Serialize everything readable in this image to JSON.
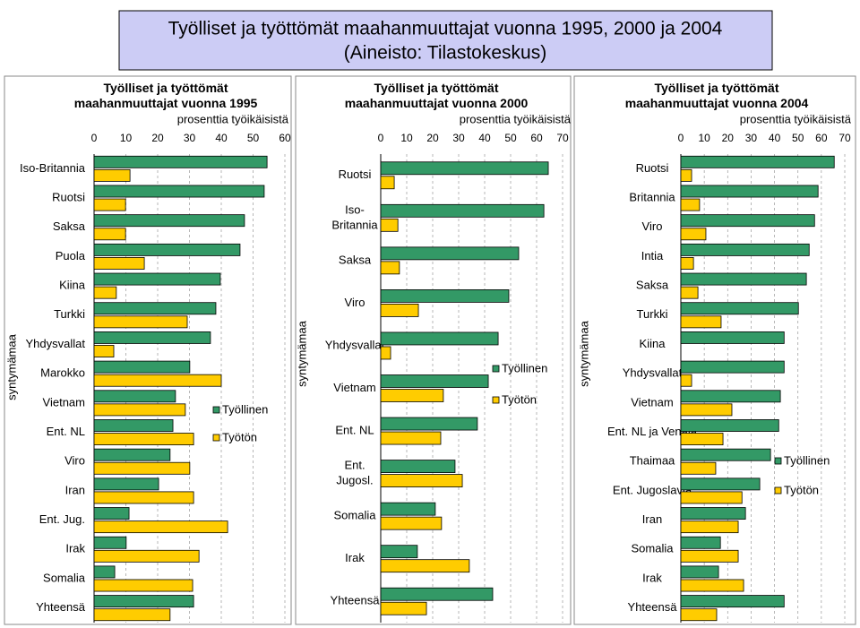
{
  "header": {
    "title": "Työlliset ja työttömät maahanmuuttajat vuonna 1995, 2000 ja 2004",
    "subtitle": "(Aineisto: Tilastokeskus)"
  },
  "chart_data": [
    {
      "type": "barh",
      "title": "Työlliset ja työttömät\nmaahanmuuttajat vuonna 1995",
      "x_label": "prosenttia työikäisistä",
      "y_label": "syntymämaa",
      "categories": [
        "Iso-Britannia",
        "Ruotsi",
        "Saksa",
        "Puola",
        "Kiina",
        "Turkki",
        "Yhdysvallat",
        "Marokko",
        "Vietnam",
        "Ent. NL",
        "Viro",
        "Iran",
        "Ent. Jug.",
        "Irak",
        "Somalia",
        "Yhteensä"
      ],
      "series": [
        {
          "name": "Työllinen",
          "color": "#339966",
          "values": [
            54.4,
            53.5,
            47.3,
            45.9,
            39.7,
            38.3,
            36.6,
            30.1,
            25.6,
            24.8,
            23.9,
            20.3,
            11.0,
            10.1,
            6.5,
            31.3
          ]
        },
        {
          "name": "Työtön",
          "color": "#ffcc00",
          "values": [
            11.3,
            9.9,
            9.9,
            15.8,
            7.0,
            29.3,
            6.2,
            40.0,
            28.7,
            31.3,
            30.1,
            31.3,
            42.0,
            33.0,
            31.0,
            23.9
          ]
        }
      ],
      "xlim": [
        0,
        60
      ],
      "xticks": [
        0,
        10,
        20,
        30,
        40,
        50,
        60
      ],
      "grid": true
    },
    {
      "type": "barh",
      "title": "Työlliset ja työttömät\nmaahanmuuttajat vuonna 2000",
      "x_label": "prosenttia työikäisistä",
      "y_label": "syntymämaa",
      "categories": [
        "Ruotsi",
        "Iso-\nBritannia",
        "Saksa",
        "Viro",
        "Yhdysvallat",
        "Vietnam",
        "Ent. NL",
        "Ent.\nJugosl.",
        "Somalia",
        "Irak",
        "Yhteensä"
      ],
      "series": [
        {
          "name": "Työllinen",
          "color": "#339966",
          "values": [
            64.5,
            62.8,
            53.1,
            49.3,
            45.2,
            41.4,
            37.2,
            28.6,
            21.0,
            14.1,
            43.1
          ]
        },
        {
          "name": "Työtön",
          "color": "#ffcc00",
          "values": [
            5.2,
            6.6,
            7.2,
            14.5,
            3.8,
            24.1,
            23.1,
            31.4,
            23.4,
            34.1,
            17.6
          ]
        }
      ],
      "xlim": [
        0,
        70
      ],
      "xticks": [
        0,
        10,
        20,
        30,
        40,
        50,
        60,
        70
      ],
      "grid": true
    },
    {
      "type": "barh",
      "title": "Työlliset ja työttömät\nmaahanmuuttajat vuonna 2004",
      "x_label": "prosenttia työikäisistä",
      "y_label": "syntymämaa",
      "categories": [
        "Ruotsi",
        "Britannia",
        "Viro",
        "Intia",
        "Saksa",
        "Turkki",
        "Kiina",
        "Yhdysvallat",
        "Vietnam",
        "Ent. NL ja Venäjä",
        "Thaimaa",
        "Ent. Jugoslavia",
        "Iran",
        "Somalia",
        "Irak",
        "Yhteensä"
      ],
      "series": [
        {
          "name": "Työllinen",
          "color": "#339966",
          "values": [
            65.5,
            58.6,
            57.1,
            54.8,
            53.6,
            50.2,
            44.1,
            44.1,
            42.5,
            41.8,
            38.3,
            33.7,
            27.6,
            16.9,
            16.1,
            44.1
          ]
        },
        {
          "name": "Työtön",
          "color": "#ffcc00",
          "values": [
            4.6,
            8.0,
            10.7,
            5.4,
            7.3,
            17.2,
            0,
            4.6,
            21.8,
            18.0,
            14.9,
            26.1,
            24.5,
            24.5,
            26.8,
            15.3
          ]
        }
      ],
      "xlim": [
        0,
        70
      ],
      "xticks": [
        0,
        10,
        20,
        30,
        40,
        50,
        60,
        70
      ],
      "grid": true
    }
  ]
}
